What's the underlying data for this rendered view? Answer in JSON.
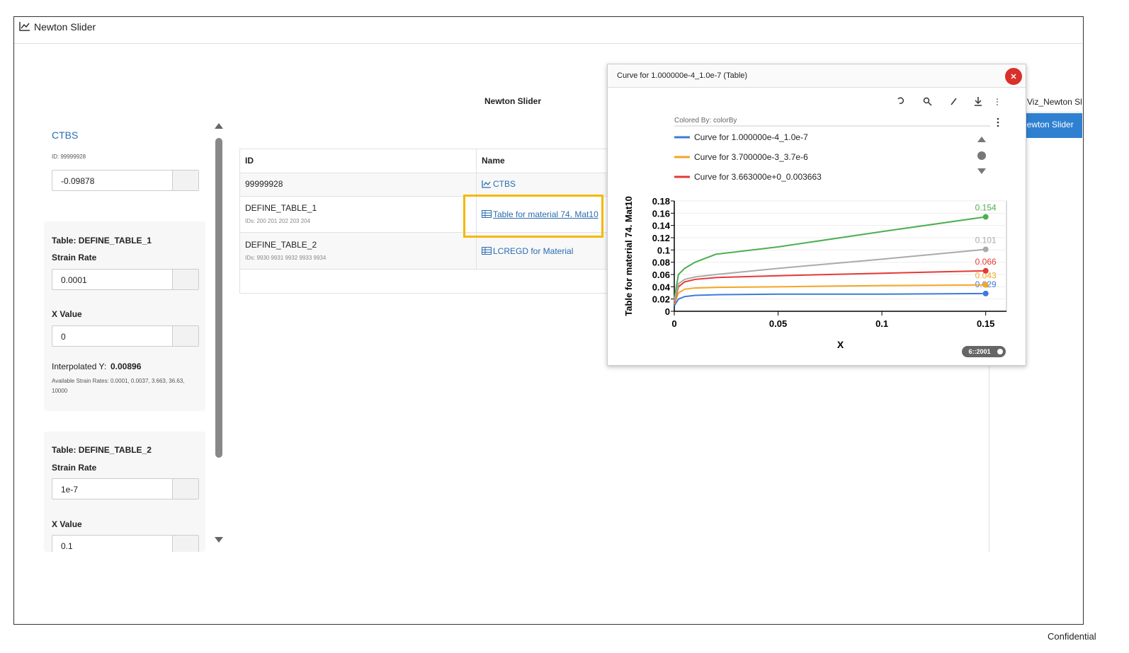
{
  "window": {
    "title": "Newton Slider"
  },
  "page": {
    "title": "Newton Slider"
  },
  "sidebar": {
    "ctbs": {
      "name": "CTBS",
      "id": "ID: 99999928",
      "value": "-0.09878"
    },
    "tables": [
      {
        "title": "Table: DEFINE_TABLE_1",
        "strain_label": "Strain Rate",
        "strain_value": "0.0001",
        "x_label": "X Value",
        "x_value": "0",
        "interp_label": "Interpolated Y:",
        "interp_value": "0.00896",
        "available": "Available Strain Rates: 0.0001, 0.0037, 3.663, 36.63, 10000"
      },
      {
        "title": "Table: DEFINE_TABLE_2",
        "strain_label": "Strain Rate",
        "strain_value": "1e-7",
        "x_label": "X Value",
        "x_value": "0.1"
      }
    ]
  },
  "table": {
    "headers": [
      "ID",
      "Name"
    ],
    "rows": [
      {
        "id": "99999928",
        "name": "CTBS"
      },
      {
        "id": "DEFINE_TABLE_1",
        "ids": "IDs: 200  201  202  203  204",
        "name": "Table for material 74. Mat10"
      },
      {
        "id": "DEFINE_TABLE_2",
        "ids": "IDs: 9930  9931  9932  9933  9934",
        "name": "LCREGD for Material"
      }
    ]
  },
  "tabs": [
    "Viz_Newton Sli",
    "lewton Slider"
  ],
  "popup": {
    "title": "Curve for 1.000000e-4_1.0e-7 (Table)",
    "colored_by": "Colored By: colorBy",
    "badge": "6::2001"
  },
  "chart_data": {
    "type": "line",
    "xlabel": "X",
    "ylabel": "Table for material 74. Mat10",
    "x": [
      0,
      0.002,
      0.005,
      0.01,
      0.02,
      0.05,
      0.1,
      0.15
    ],
    "series": [
      {
        "name": "Curve for 1.000000e-4_1.0e-7",
        "color": "#3d7bd9",
        "values": [
          0.009,
          0.02,
          0.024,
          0.026,
          0.027,
          0.028,
          0.028,
          0.029
        ]
      },
      {
        "name": "Curve for 3.700000e-3_3.7e-6",
        "color": "#f5a623",
        "values": [
          0.012,
          0.03,
          0.036,
          0.038,
          0.039,
          0.04,
          0.042,
          0.043
        ]
      },
      {
        "name": "Curve for 3.663000e+0_0.003663",
        "color": "#e53935",
        "values": [
          0.014,
          0.04,
          0.048,
          0.052,
          0.055,
          0.058,
          0.062,
          0.066
        ]
      },
      {
        "color": "#4caf50",
        "values": [
          0.02,
          0.06,
          0.07,
          0.08,
          0.093,
          0.105,
          0.13,
          0.154
        ]
      },
      {
        "color": "#aaaaaa",
        "values": [
          0.016,
          0.045,
          0.052,
          0.056,
          0.06,
          0.07,
          0.085,
          0.101
        ]
      }
    ],
    "xlim": [
      0,
      0.16
    ],
    "xticks": [
      0,
      0.05,
      0.1,
      0.15
    ],
    "ylim": [
      0,
      0.18
    ],
    "yticks": [
      0,
      0.02,
      0.04,
      0.06,
      0.08,
      0.1,
      0.12,
      0.14,
      0.16,
      0.18
    ],
    "grid": true
  },
  "footer": "Confidential"
}
